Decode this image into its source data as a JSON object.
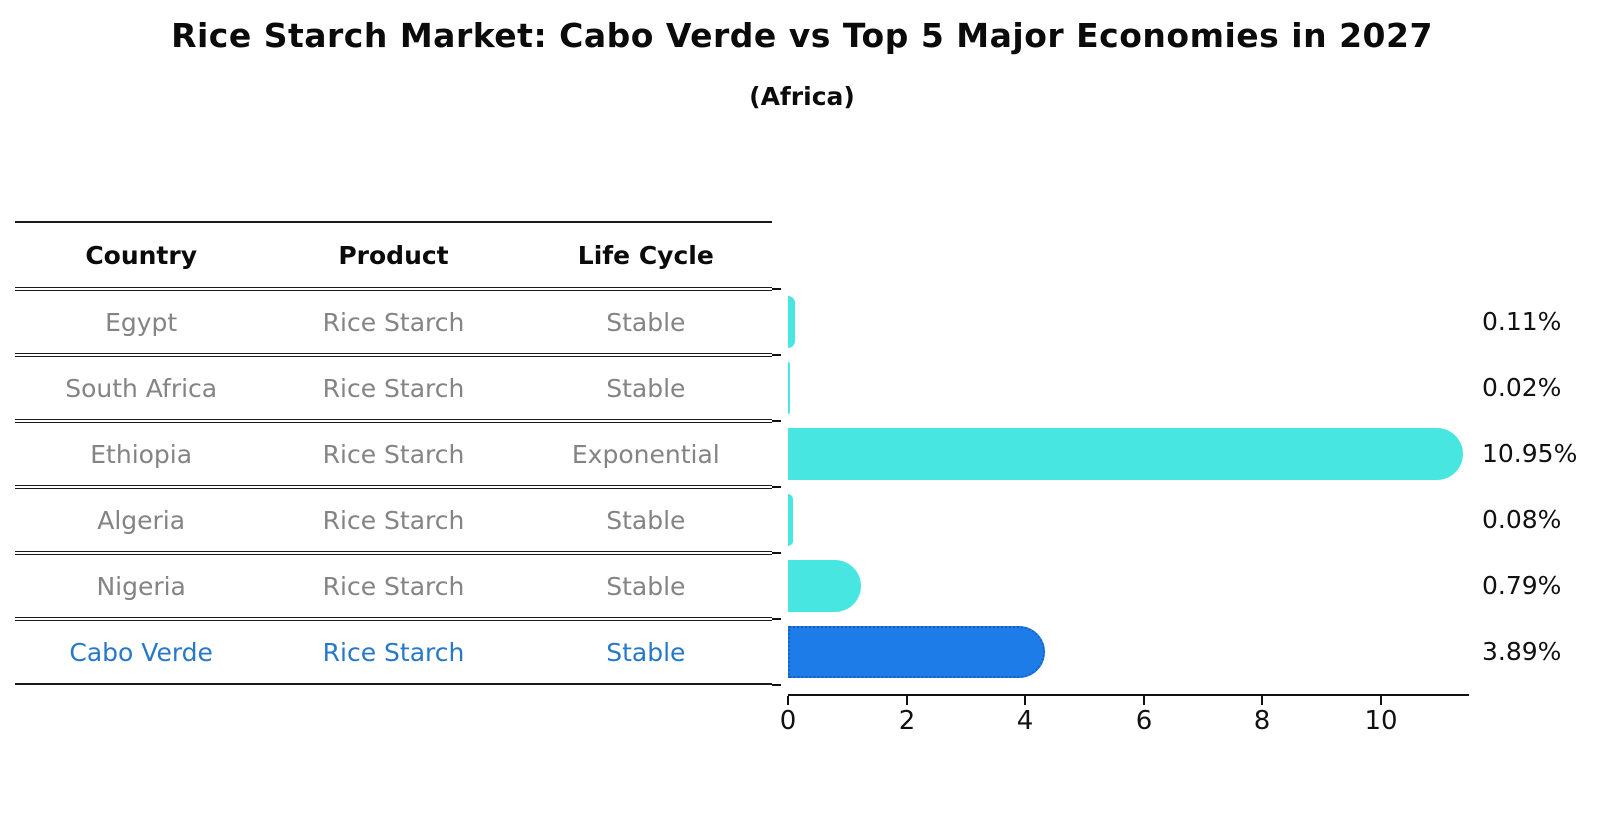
{
  "title": "Rice Starch Market: Cabo Verde vs Top 5 Major Economies in 2027",
  "subtitle": "(Africa)",
  "table": {
    "columns": [
      "Country",
      "Product",
      "Life Cycle"
    ]
  },
  "chart_data": {
    "type": "bar",
    "orientation": "horizontal",
    "title": "Rice Starch Market: Cabo Verde vs Top 5 Major Economies in 2027",
    "subtitle": "(Africa)",
    "xlabel": "",
    "ylabel": "",
    "xlim": [
      0,
      11.5
    ],
    "xticks": [
      0,
      2,
      4,
      6,
      8,
      10
    ],
    "grid": false,
    "legend": "none",
    "rows": [
      {
        "country": "Egypt",
        "product": "Rice Starch",
        "life_cycle": "Stable",
        "value": 0.11,
        "label": "0.11%",
        "highlight": false
      },
      {
        "country": "South Africa",
        "product": "Rice Starch",
        "life_cycle": "Stable",
        "value": 0.02,
        "label": "0.02%",
        "highlight": false
      },
      {
        "country": "Ethiopia",
        "product": "Rice Starch",
        "life_cycle": "Exponential",
        "value": 10.95,
        "label": "10.95%",
        "highlight": false
      },
      {
        "country": "Algeria",
        "product": "Rice Starch",
        "life_cycle": "Stable",
        "value": 0.08,
        "label": "0.08%",
        "highlight": false
      },
      {
        "country": "Nigeria",
        "product": "Rice Starch",
        "life_cycle": "Stable",
        "value": 0.79,
        "label": "0.79%",
        "highlight": false
      },
      {
        "country": "Cabo Verde",
        "product": "Rice Starch",
        "life_cycle": "Stable",
        "value": 3.89,
        "label": "3.89%",
        "highlight": true
      }
    ],
    "colors": {
      "default_bar": "#48E6E1",
      "highlight_bar": "#1E7CE8",
      "highlight_border": "#1560C8",
      "highlight_text": "#2878C8",
      "row_text": "#848484",
      "axis": "#111111"
    }
  }
}
